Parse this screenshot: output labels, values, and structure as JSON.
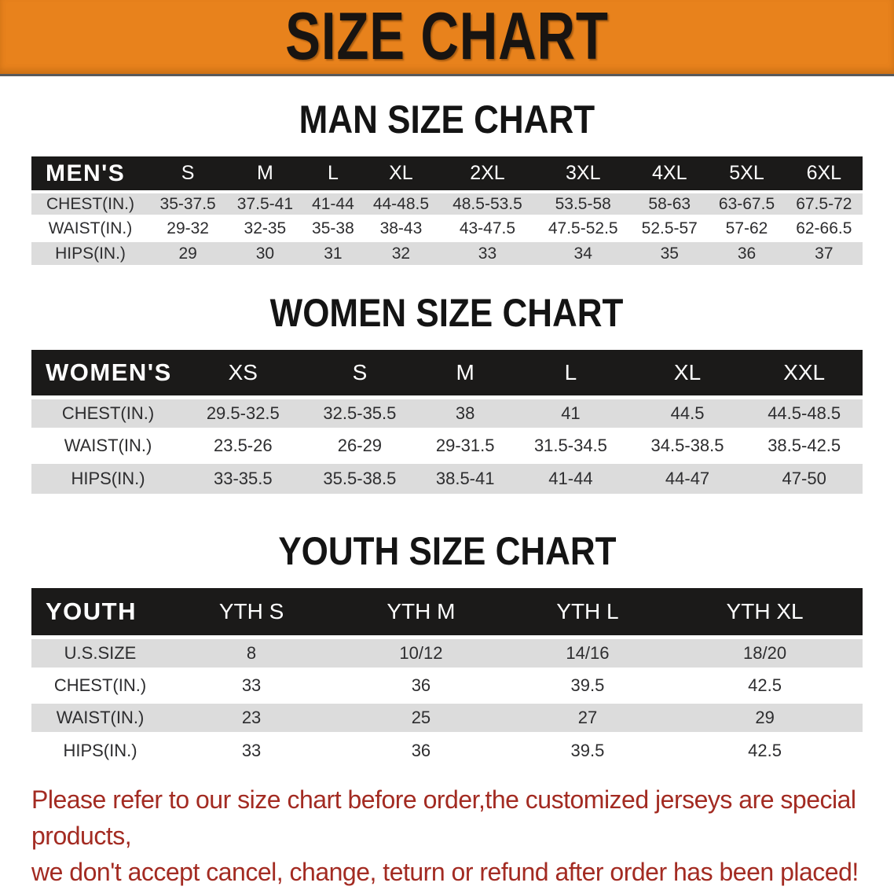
{
  "banner": {
    "title": "SIZE CHART",
    "bg_color": "#e8821c",
    "text_color": "#181411"
  },
  "sections": [
    {
      "key": "men",
      "heading": "MAN SIZE CHART",
      "table": {
        "label": "MEN'S",
        "columns": [
          "S",
          "M",
          "L",
          "XL",
          "2XL",
          "3XL",
          "4XL",
          "5XL",
          "6XL"
        ],
        "rows": [
          {
            "label": "CHEST(IN.)",
            "values": [
              "35-37.5",
              "37.5-41",
              "41-44",
              "44-48.5",
              "48.5-53.5",
              "53.5-58",
              "58-63",
              "63-67.5",
              "67.5-72"
            ]
          },
          {
            "label": "WAIST(IN.)",
            "values": [
              "29-32",
              "32-35",
              "35-38",
              "38-43",
              "43-47.5",
              "47.5-52.5",
              "52.5-57",
              "57-62",
              "62-66.5"
            ]
          },
          {
            "label": "HIPS(IN.)",
            "values": [
              "29",
              "30",
              "31",
              "32",
              "33",
              "34",
              "35",
              "36",
              "37"
            ]
          }
        ]
      }
    },
    {
      "key": "women",
      "heading": "WOMEN SIZE CHART",
      "table": {
        "label": "WOMEN'S",
        "columns": [
          "XS",
          "S",
          "M",
          "L",
          "XL",
          "XXL"
        ],
        "rows": [
          {
            "label": "CHEST(IN.)",
            "values": [
              "29.5-32.5",
              "32.5-35.5",
              "38",
              "41",
              "44.5",
              "44.5-48.5"
            ]
          },
          {
            "label": "WAIST(IN.)",
            "values": [
              "23.5-26",
              "26-29",
              "29-31.5",
              "31.5-34.5",
              "34.5-38.5",
              "38.5-42.5"
            ]
          },
          {
            "label": "HIPS(IN.)",
            "values": [
              "33-35.5",
              "35.5-38.5",
              "38.5-41",
              "41-44",
              "44-47",
              "47-50"
            ]
          }
        ]
      }
    },
    {
      "key": "youth",
      "heading": "YOUTH SIZE CHART",
      "table": {
        "label": "YOUTH",
        "columns": [
          "YTH S",
          "YTH M",
          "YTH L",
          "YTH XL"
        ],
        "rows": [
          {
            "label": "U.S.SIZE",
            "values": [
              "8",
              "10/12",
              "14/16",
              "18/20"
            ]
          },
          {
            "label": "CHEST(IN.)",
            "values": [
              "33",
              "36",
              "39.5",
              "42.5"
            ]
          },
          {
            "label": "WAIST(IN.)",
            "values": [
              "23",
              "25",
              "27",
              "29"
            ]
          },
          {
            "label": "HIPS(IN.)",
            "values": [
              "33",
              "36",
              "39.5",
              "42.5"
            ]
          }
        ]
      }
    }
  ],
  "disclaimer": {
    "line1": "Please refer to our size chart before order,the customized jerseys are special products,",
    "line2": "we don't accept cancel, change, teturn or refund after order has been placed!",
    "text_color": "#a32b22"
  },
  "colors": {
    "banner_orange": "#e8821c",
    "header_band_black": "#1b1a19",
    "row_alt_gray": "#dcdcdc",
    "disclaimer_red": "#a32b22"
  }
}
